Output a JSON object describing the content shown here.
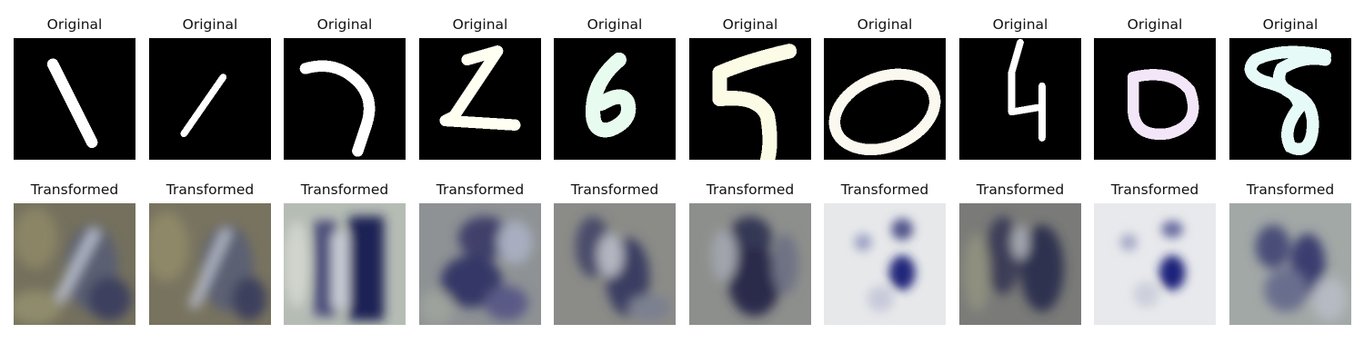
{
  "figure": {
    "original_title": "Original",
    "transformed_title": "Transformed",
    "panels": [
      {
        "digit": "1",
        "stroke_color": "#ffffff",
        "transformed_tone": "dark-olive"
      },
      {
        "digit": "1",
        "stroke_color": "#ffffff",
        "transformed_tone": "dark-olive"
      },
      {
        "digit": "7",
        "stroke_color": "#ffffff",
        "transformed_tone": "light-gray-blue"
      },
      {
        "digit": "2",
        "stroke_color": "#fffff2",
        "transformed_tone": "gray-blue"
      },
      {
        "digit": "6",
        "stroke_color": "#e8fbef",
        "transformed_tone": "gray-blue"
      },
      {
        "digit": "5",
        "stroke_color": "#fbfbe6",
        "transformed_tone": "gray-blue"
      },
      {
        "digit": "0",
        "stroke_color": "#fbf8ef",
        "transformed_tone": "white-blue"
      },
      {
        "digit": "4",
        "stroke_color": "#ffffff",
        "transformed_tone": "gray-blue"
      },
      {
        "digit": "0",
        "stroke_color": "#f3e6f8",
        "transformed_tone": "white-blue"
      },
      {
        "digit": "8",
        "stroke_color": "#e6fbf8",
        "transformed_tone": "light-gray-blue"
      }
    ]
  }
}
